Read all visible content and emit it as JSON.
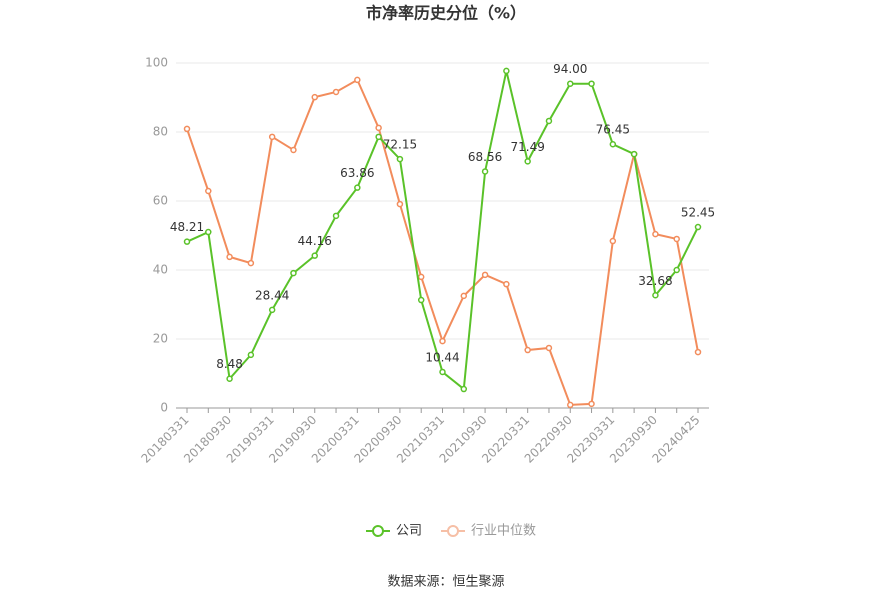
{
  "chart_data": {
    "type": "line",
    "title": "市净率历史分位（%）",
    "categories": [
      "20180331",
      null,
      "20180930",
      null,
      "20190331",
      null,
      "20190930",
      null,
      "20200331",
      null,
      "20200930",
      null,
      "20210331",
      null,
      "20210930",
      null,
      "20220331",
      null,
      "20220930",
      null,
      "20230331",
      null,
      "20230930",
      null,
      "20240425"
    ],
    "series": [
      {
        "name": "公司",
        "color": "#5ac229",
        "values": [
          48.21,
          51.0,
          8.48,
          15.4,
          28.44,
          39.1,
          44.16,
          55.7,
          63.86,
          78.6,
          72.15,
          31.3,
          10.44,
          5.5,
          68.56,
          97.7,
          71.49,
          83.2,
          94.0,
          94.0,
          76.45,
          73.6,
          32.68,
          40.0,
          52.45
        ],
        "value_labels": [
          "48.21",
          null,
          "8.48",
          null,
          "28.44",
          null,
          "44.16",
          null,
          "63.86",
          null,
          "72.15",
          null,
          "10.44",
          null,
          "68.56",
          null,
          "71.49",
          null,
          "94.00",
          null,
          "76.45",
          null,
          "32.68",
          null,
          "52.45"
        ]
      },
      {
        "name": "行业中位数",
        "color": "#f28c5c",
        "values": [
          80.9,
          62.9,
          43.8,
          42.0,
          78.6,
          74.8,
          90.1,
          91.6,
          95.1,
          81.2,
          59.1,
          38.0,
          19.4,
          32.5,
          38.6,
          35.9,
          16.8,
          17.4,
          0.9,
          1.2,
          48.4,
          73.6,
          50.4,
          49.0,
          16.2
        ]
      }
    ],
    "ylim": [
      0,
      100
    ],
    "yticks": [
      0,
      20,
      40,
      60,
      80,
      100
    ],
    "grid": true,
    "legend": "bottom",
    "source": "数据来源：恒生聚源"
  }
}
